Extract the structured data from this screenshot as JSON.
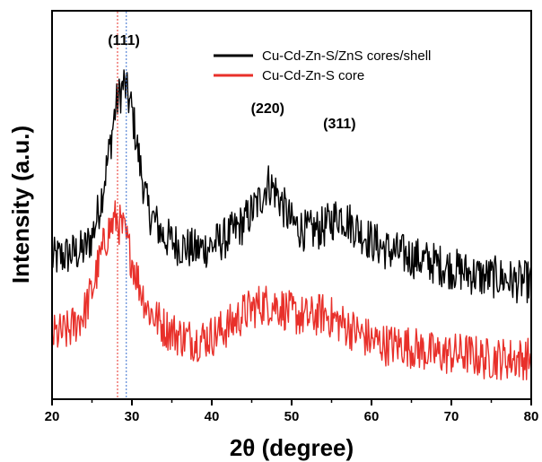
{
  "chart_data": {
    "type": "line",
    "xlabel": "2θ (degree)",
    "ylabel": "Intensity (a.u.)",
    "xlim": [
      20,
      80
    ],
    "xticks": [
      20,
      30,
      40,
      50,
      60,
      70,
      80
    ],
    "yticks": false,
    "grid": false,
    "legend_position": "top-right",
    "series": [
      {
        "name": "Cu-Cd-Zn-S/ZnS cores/shell",
        "color": "#000000",
        "x": [
          20,
          22,
          24,
          25,
          26,
          27,
          28,
          29,
          30,
          31,
          32,
          34,
          36,
          38,
          40,
          42,
          44,
          46,
          47,
          48,
          50,
          52,
          54,
          56,
          58,
          60,
          62,
          64,
          66,
          68,
          70,
          72,
          74,
          76,
          78,
          80
        ],
        "y": [
          3.1,
          3.2,
          3.3,
          3.6,
          4.3,
          5.3,
          6.5,
          7.0,
          6.4,
          5.2,
          4.2,
          3.6,
          3.4,
          3.3,
          3.4,
          3.6,
          3.9,
          4.4,
          4.8,
          4.6,
          3.9,
          3.7,
          3.8,
          4.1,
          3.8,
          3.5,
          3.3,
          3.2,
          3.1,
          3.0,
          2.9,
          2.8,
          2.7,
          2.7,
          2.6,
          2.6
        ]
      },
      {
        "name": "Cu-Cd-Zn-S core",
        "color": "#e8302a",
        "x": [
          20,
          22,
          24,
          25,
          26,
          27,
          28,
          29,
          30,
          31,
          32,
          34,
          36,
          38,
          40,
          42,
          44,
          46,
          48,
          50,
          52,
          54,
          56,
          58,
          60,
          62,
          64,
          66,
          68,
          70,
          72,
          74,
          76,
          78,
          80
        ],
        "y": [
          1.4,
          1.5,
          1.9,
          2.4,
          3.1,
          3.7,
          4.0,
          3.7,
          3.1,
          2.5,
          2.0,
          1.6,
          1.4,
          1.3,
          1.4,
          1.6,
          1.9,
          2.1,
          2.1,
          1.9,
          1.8,
          1.9,
          1.7,
          1.5,
          1.3,
          1.2,
          1.2,
          1.1,
          1.0,
          1.0,
          1.0,
          0.9,
          0.9,
          0.9,
          0.9
        ]
      }
    ],
    "annotations": [
      {
        "text": "(111)",
        "x": 29
      },
      {
        "text": "(220)",
        "x": 47
      },
      {
        "text": "(311)",
        "x": 56
      }
    ],
    "reference_lines": [
      {
        "x": 28.2,
        "color": "#e8302a",
        "style": "dotted"
      },
      {
        "x": 29.3,
        "color": "#3a6fd0",
        "style": "dotted"
      }
    ],
    "ylim": [
      0,
      8.6
    ]
  }
}
